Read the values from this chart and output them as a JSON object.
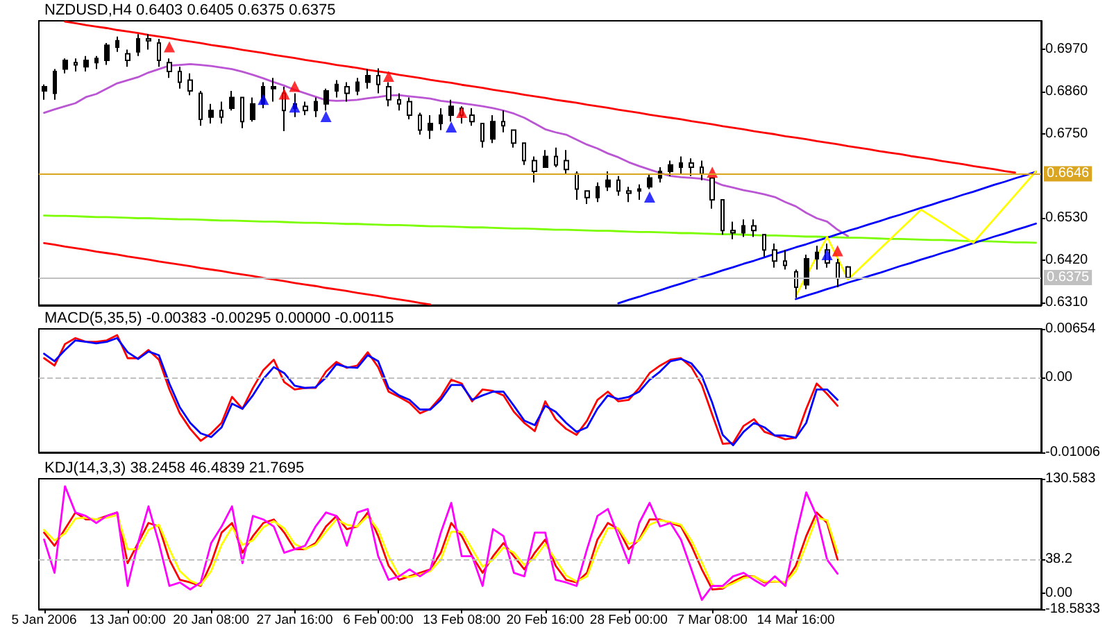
{
  "chart_data": [
    {
      "type": "candlestick",
      "title": "NZDUSD,H4 0.6403 0.6405 0.6375 0.6375",
      "color": "#000000",
      "categories": [
        null,
        null,
        null,
        null,
        null,
        null,
        null,
        null,
        null,
        null,
        null,
        null,
        null,
        null,
        null,
        null,
        null,
        null,
        null,
        null,
        null,
        null,
        null,
        null,
        null,
        null,
        null,
        null,
        null,
        null,
        null,
        null,
        null,
        null,
        null,
        null,
        null,
        null,
        null,
        null,
        null,
        null,
        null,
        null,
        null,
        null,
        null,
        null,
        null,
        null,
        null,
        null,
        null,
        null,
        null,
        null,
        null,
        null,
        null,
        null,
        null,
        null,
        null,
        null,
        null,
        null,
        null,
        null,
        null,
        null,
        null,
        null,
        null,
        null,
        null,
        null,
        null,
        null,
        null,
        null,
        null,
        null,
        null,
        null,
        null,
        null,
        null,
        null,
        null,
        null,
        null,
        null,
        null,
        null,
        null,
        null
      ],
      "ohlc": [
        [
          0.6862,
          0.6879,
          0.6839,
          0.6873
        ],
        [
          0.6856,
          0.6919,
          0.6839,
          0.6913
        ],
        [
          0.6919,
          0.6947,
          0.6908,
          0.6942
        ],
        [
          0.6936,
          0.6947,
          0.6913,
          0.693
        ],
        [
          0.6925,
          0.6953,
          0.6913,
          0.6942
        ],
        [
          0.6936,
          0.6953,
          0.6919,
          0.6947
        ],
        [
          0.6942,
          0.6987,
          0.693,
          0.6981
        ],
        [
          0.6976,
          0.7004,
          0.6964,
          0.6993
        ],
        [
          0.6959,
          0.697,
          0.6925,
          0.6942
        ],
        [
          0.6964,
          0.701,
          0.6953,
          0.6998
        ],
        [
          0.6998,
          0.701,
          0.697,
          0.6993
        ],
        [
          0.6987,
          0.6998,
          0.6925,
          0.6942
        ],
        [
          0.6936,
          0.6947,
          0.6896,
          0.6913
        ],
        [
          0.6913,
          0.6925,
          0.6868,
          0.6885
        ],
        [
          0.689,
          0.6908,
          0.6851,
          0.6862
        ],
        [
          0.6856,
          0.6862,
          0.6771,
          0.6788
        ],
        [
          0.6794,
          0.6828,
          0.6777,
          0.6811
        ],
        [
          0.6811,
          0.6834,
          0.6777,
          0.6794
        ],
        [
          0.6817,
          0.6862,
          0.6811,
          0.6845
        ],
        [
          0.6845,
          0.6845,
          0.6765,
          0.6782
        ],
        [
          0.6788,
          0.6845,
          0.6782,
          0.6828
        ],
        [
          0.6828,
          0.6885,
          0.6817,
          0.6873
        ],
        [
          0.6868,
          0.6896,
          0.6834,
          0.6873
        ],
        [
          0.6856,
          0.6873,
          0.6757,
          0.6811
        ],
        [
          0.6817,
          0.6856,
          0.6794,
          0.6828
        ],
        [
          0.6822,
          0.6834,
          0.6799,
          0.6811
        ],
        [
          0.6811,
          0.6845,
          0.6794,
          0.6834
        ],
        [
          0.6828,
          0.6868,
          0.6811,
          0.6862
        ],
        [
          0.6862,
          0.689,
          0.6845,
          0.6879
        ],
        [
          0.6873,
          0.6885,
          0.6834,
          0.6856
        ],
        [
          0.6862,
          0.6896,
          0.6851,
          0.6885
        ],
        [
          0.6885,
          0.6919,
          0.6868,
          0.6902
        ],
        [
          0.6902,
          0.6921,
          0.6856,
          0.6879
        ],
        [
          0.6873,
          0.6885,
          0.6822,
          0.6839
        ],
        [
          0.6839,
          0.6856,
          0.6811,
          0.6828
        ],
        [
          0.6834,
          0.6845,
          0.6788,
          0.6799
        ],
        [
          0.6799,
          0.6805,
          0.6748,
          0.676
        ],
        [
          0.676,
          0.6799,
          0.6737,
          0.6777
        ],
        [
          0.6777,
          0.6817,
          0.676,
          0.6799
        ],
        [
          0.6799,
          0.6839,
          0.6782,
          0.6822
        ],
        [
          0.6817,
          0.6822,
          0.6777,
          0.6799
        ],
        [
          0.6799,
          0.6817,
          0.6771,
          0.6782
        ],
        [
          0.6777,
          0.6777,
          0.6714,
          0.6731
        ],
        [
          0.6737,
          0.6799,
          0.6726,
          0.6782
        ],
        [
          0.6782,
          0.6811,
          0.6754,
          0.6771
        ],
        [
          0.676,
          0.676,
          0.6714,
          0.6726
        ],
        [
          0.6726,
          0.6726,
          0.6669,
          0.668
        ],
        [
          0.668,
          0.6691,
          0.6623,
          0.6652
        ],
        [
          0.6663,
          0.6708,
          0.6663,
          0.6691
        ],
        [
          0.6691,
          0.6714,
          0.6663,
          0.6669
        ],
        [
          0.668,
          0.6708,
          0.6646,
          0.6657
        ],
        [
          0.6646,
          0.6652,
          0.6578,
          0.6606
        ],
        [
          0.6601,
          0.6601,
          0.6567,
          0.6584
        ],
        [
          0.6584,
          0.6623,
          0.6572,
          0.6612
        ],
        [
          0.6612,
          0.6652,
          0.6601,
          0.6629
        ],
        [
          0.6629,
          0.664,
          0.6589,
          0.6601
        ],
        [
          0.6601,
          0.6612,
          0.6572,
          0.6595
        ],
        [
          0.6601,
          0.6618,
          0.6578,
          0.6606
        ],
        [
          0.6612,
          0.6646,
          0.6606,
          0.6635
        ],
        [
          0.6635,
          0.6663,
          0.6623,
          0.6652
        ],
        [
          0.6652,
          0.668,
          0.664,
          0.6669
        ],
        [
          0.6663,
          0.6691,
          0.6646,
          0.6674
        ],
        [
          0.6674,
          0.6686,
          0.664,
          0.6663
        ],
        [
          0.6663,
          0.668,
          0.6629,
          0.6646
        ],
        [
          0.6635,
          0.6635,
          0.6555,
          0.6578
        ],
        [
          0.6578,
          0.6578,
          0.6487,
          0.6498
        ],
        [
          0.6498,
          0.6521,
          0.6475,
          0.6492
        ],
        [
          0.6492,
          0.6527,
          0.6481,
          0.651
        ],
        [
          0.651,
          0.6527,
          0.6481,
          0.6498
        ],
        [
          0.6487,
          0.6487,
          0.643,
          0.6447
        ],
        [
          0.6447,
          0.6464,
          0.6401,
          0.6418
        ],
        [
          0.6418,
          0.6447,
          0.6396,
          0.6407
        ],
        [
          0.639,
          0.6396,
          0.6322,
          0.635
        ],
        [
          0.6356,
          0.6435,
          0.6345,
          0.6424
        ],
        [
          0.6424,
          0.6458,
          0.6396,
          0.6441
        ],
        [
          0.6447,
          0.6464,
          0.6401,
          0.6413
        ],
        [
          0.6413,
          0.6424,
          0.635,
          0.6373
        ],
        [
          0.6403,
          0.6405,
          0.6375,
          0.6375
        ],
        null,
        null,
        null,
        null,
        null,
        null,
        null,
        null,
        null,
        null,
        null,
        null,
        null,
        null,
        null,
        null,
        null,
        null
      ],
      "series": [
        {
          "type": "line",
          "color": "#ba55d3",
          "values": [
            0.6805,
            0.6814,
            0.6822,
            0.683,
            0.6846,
            0.6854,
            0.6868,
            0.6882,
            0.689,
            0.6898,
            0.691,
            0.6919,
            0.6928,
            0.693,
            0.6932,
            0.693,
            0.6927,
            0.6923,
            0.6919,
            0.6912,
            0.6904,
            0.6895,
            0.6885,
            0.6876,
            0.6865,
            0.6856,
            0.6847,
            0.6838,
            0.6836,
            0.6837,
            0.6839,
            0.6843,
            0.6846,
            0.685,
            0.6851,
            0.6848,
            0.6845,
            0.6842,
            0.6836,
            0.6833,
            0.683,
            0.6826,
            0.6822,
            0.6817,
            0.6811,
            0.6803,
            0.6792,
            0.6777,
            0.6762,
            0.6754,
            0.6748,
            0.6735,
            0.6722,
            0.6712,
            0.6699,
            0.6689,
            0.6676,
            0.6666,
            0.6657,
            0.6648,
            0.664,
            0.6637,
            0.6635,
            0.6633,
            0.6627,
            0.6616,
            0.661,
            0.6603,
            0.6598,
            0.6592,
            0.6585,
            0.6572,
            0.6561,
            0.6544,
            0.653,
            0.6521,
            0.65,
            0.6483,
            null,
            null,
            null,
            null,
            null,
            null,
            null,
            null,
            null,
            null,
            null,
            null,
            null,
            null,
            null,
            null,
            null,
            null
          ]
        },
        {
          "type": "line",
          "color": "#ff0000",
          "values": [
            null,
            null,
            0.7043,
            0.7039,
            0.7034,
            0.703,
            0.7026,
            0.7021,
            0.7017,
            0.7013,
            0.7008,
            0.7004,
            0.7,
            0.6995,
            0.6991,
            0.6987,
            0.6982,
            0.6978,
            0.6974,
            0.6969,
            0.6965,
            0.6961,
            0.6956,
            0.6952,
            0.6948,
            0.6943,
            0.6939,
            0.6935,
            0.693,
            0.6926,
            0.6922,
            0.6917,
            0.6913,
            0.6909,
            0.6904,
            0.69,
            0.6896,
            0.6891,
            0.6887,
            0.6883,
            0.6878,
            0.6874,
            0.687,
            0.6865,
            0.6861,
            0.6857,
            0.6852,
            0.6848,
            0.6844,
            0.6839,
            0.6835,
            0.6831,
            0.6826,
            0.6822,
            0.6818,
            0.6813,
            0.6809,
            0.6805,
            0.68,
            0.6796,
            0.6792,
            0.6788,
            0.6783,
            0.6779,
            0.6775,
            0.677,
            0.6766,
            0.6762,
            0.6757,
            0.6753,
            0.6749,
            0.6744,
            0.674,
            0.6736,
            0.6731,
            0.6727,
            0.6723,
            0.6718,
            0.6714,
            0.671,
            0.6705,
            0.6701,
            0.6697,
            0.6692,
            0.6688,
            0.6684,
            0.6679,
            0.6675,
            0.6671,
            0.6666,
            0.6662,
            0.6658,
            0.6653,
            0.6649,
            null,
            null
          ]
        },
        {
          "type": "line",
          "color": "#ff0000",
          "values": [
            0.6465,
            0.6461,
            0.6456,
            0.6452,
            0.6448,
            0.6443,
            0.6439,
            0.6435,
            0.643,
            0.6426,
            0.6422,
            0.6417,
            0.6413,
            0.6409,
            0.6405,
            0.64,
            0.6396,
            0.6392,
            0.6387,
            0.6383,
            0.6379,
            0.6374,
            0.637,
            0.6366,
            0.6361,
            0.6357,
            0.6353,
            0.6348,
            0.6344,
            0.634,
            0.6335,
            0.6331,
            0.6327,
            0.6322,
            0.6318,
            0.6314,
            0.6309,
            0.6305,
            null,
            null,
            null,
            null,
            null,
            null,
            null,
            null,
            null,
            null,
            null,
            null,
            null,
            null,
            null,
            null,
            null,
            null,
            null,
            null,
            null,
            null,
            null,
            null,
            null,
            null,
            null,
            null,
            null,
            null,
            null,
            null,
            null,
            null,
            null,
            null,
            null,
            null,
            null,
            null,
            null,
            null,
            null,
            null,
            null,
            null,
            null,
            null,
            null,
            null,
            null,
            null,
            null,
            null,
            null,
            null,
            null,
            null
          ]
        },
        {
          "type": "line",
          "color": "#7cfc00",
          "values": [
            0.6537,
            0.6536,
            0.6536,
            0.6535,
            0.6534,
            0.6533,
            0.6533,
            0.6532,
            0.6531,
            0.653,
            0.653,
            0.6529,
            0.6528,
            0.6527,
            0.6527,
            0.6526,
            0.6525,
            0.6524,
            0.6524,
            0.6523,
            0.6522,
            0.6521,
            0.6521,
            0.652,
            0.6519,
            0.6518,
            0.6518,
            0.6517,
            0.6516,
            0.6515,
            0.6515,
            0.6514,
            0.6513,
            0.6512,
            0.6512,
            0.6511,
            0.651,
            0.6509,
            0.6509,
            0.6508,
            0.6507,
            0.6506,
            0.6506,
            0.6505,
            0.6504,
            0.6503,
            0.6503,
            0.6502,
            0.6501,
            0.65,
            0.65,
            0.6499,
            0.6498,
            0.6497,
            0.6497,
            0.6496,
            0.6495,
            0.6494,
            0.6494,
            0.6493,
            0.6492,
            0.6491,
            0.6491,
            0.649,
            0.6489,
            0.6488,
            0.6488,
            0.6487,
            0.6486,
            0.6485,
            0.6485,
            0.6484,
            0.6483,
            0.6482,
            0.6482,
            0.6481,
            0.648,
            0.6479,
            0.6479,
            0.6478,
            0.6477,
            0.6476,
            0.6476,
            0.6475,
            0.6474,
            0.6473,
            0.6473,
            0.6472,
            0.6471,
            0.647,
            0.647,
            0.6469,
            0.6468,
            0.6467,
            0.6467,
            0.6466
          ]
        },
        {
          "type": "line",
          "color": "#0000ff",
          "values": [
            null,
            null,
            null,
            null,
            null,
            null,
            null,
            null,
            null,
            null,
            null,
            null,
            null,
            null,
            null,
            null,
            null,
            null,
            null,
            null,
            null,
            null,
            null,
            null,
            null,
            null,
            null,
            null,
            null,
            null,
            null,
            null,
            null,
            null,
            null,
            null,
            null,
            null,
            null,
            null,
            null,
            null,
            null,
            null,
            null,
            null,
            null,
            null,
            null,
            null,
            null,
            null,
            null,
            null,
            null,
            0.6308,
            0.6317,
            0.6325,
            0.6334,
            0.6342,
            0.6351,
            0.6359,
            0.6368,
            0.6377,
            0.6385,
            0.6394,
            0.6402,
            0.6411,
            0.6419,
            0.6428,
            0.6437,
            0.6445,
            0.6454,
            0.6462,
            0.6471,
            0.6479,
            0.6488,
            0.6497,
            0.6505,
            0.6514,
            0.6522,
            0.6531,
            0.6539,
            0.6548,
            0.6557,
            0.6565,
            0.6574,
            0.6582,
            0.6591,
            0.6599,
            0.6608,
            0.6617,
            0.6625,
            0.6634,
            0.6642,
            0.6651
          ]
        },
        {
          "type": "line",
          "color": "#0000ff",
          "values": [
            null,
            null,
            null,
            null,
            null,
            null,
            null,
            null,
            null,
            null,
            null,
            null,
            null,
            null,
            null,
            null,
            null,
            null,
            null,
            null,
            null,
            null,
            null,
            null,
            null,
            null,
            null,
            null,
            null,
            null,
            null,
            null,
            null,
            null,
            null,
            null,
            null,
            null,
            null,
            null,
            null,
            null,
            null,
            null,
            null,
            null,
            null,
            null,
            null,
            null,
            null,
            null,
            null,
            null,
            null,
            null,
            null,
            null,
            null,
            null,
            null,
            null,
            null,
            null,
            null,
            null,
            null,
            null,
            null,
            null,
            null,
            null,
            0.6319,
            0.6328,
            0.6336,
            0.6345,
            0.6353,
            0.6362,
            0.637,
            0.6379,
            0.6387,
            0.6396,
            0.6405,
            0.6413,
            0.6422,
            0.643,
            0.6439,
            0.6447,
            0.6456,
            0.6465,
            0.6473,
            0.6482,
            0.649,
            0.6499,
            0.6507,
            0.6516
          ]
        },
        {
          "type": "line",
          "color": "#ffff00",
          "values": [
            null,
            null,
            null,
            null,
            null,
            null,
            null,
            null,
            null,
            null,
            null,
            null,
            null,
            null,
            null,
            null,
            null,
            null,
            null,
            null,
            null,
            null,
            null,
            null,
            null,
            null,
            null,
            null,
            null,
            null,
            null,
            null,
            null,
            null,
            null,
            null,
            null,
            null,
            null,
            null,
            null,
            null,
            null,
            null,
            null,
            null,
            null,
            null,
            null,
            null,
            null,
            null,
            null,
            null,
            null,
            null,
            null,
            null,
            null,
            null,
            null,
            null,
            null,
            null,
            null,
            null,
            null,
            null,
            null,
            null,
            null,
            null,
            0.6328,
            0.6379,
            0.643,
            0.6481,
            0.6426,
            0.637,
            0.6396,
            0.6422,
            0.6448,
            0.6474,
            0.65,
            0.6526,
            0.6552,
            0.6535,
            0.6518,
            0.65,
            0.6483,
            0.6466,
            0.6497,
            0.6528,
            0.6559,
            0.659,
            0.6621,
            0.6652
          ]
        },
        {
          "type": "scatter",
          "color": "#ff0000",
          "marker": "triangle",
          "values": [
            null,
            null,
            null,
            null,
            null,
            null,
            null,
            null,
            null,
            null,
            null,
            null,
            0.6977,
            null,
            null,
            null,
            null,
            null,
            null,
            null,
            null,
            null,
            null,
            0.6854,
            0.6874,
            null,
            null,
            null,
            null,
            null,
            null,
            null,
            null,
            0.69,
            null,
            null,
            null,
            null,
            null,
            null,
            0.6806,
            null,
            null,
            null,
            null,
            null,
            null,
            null,
            null,
            null,
            null,
            null,
            null,
            null,
            null,
            null,
            null,
            null,
            null,
            null,
            null,
            null,
            null,
            null,
            0.665,
            null,
            null,
            null,
            null,
            null,
            null,
            null,
            null,
            null,
            null,
            null,
            0.6445,
            null,
            null,
            null,
            null,
            null,
            null,
            null,
            null,
            null,
            null,
            null,
            null,
            null,
            null,
            null,
            null,
            null,
            null,
            null
          ]
        },
        {
          "type": "scatter",
          "color": "#0000ff",
          "marker": "triangle",
          "values": [
            null,
            null,
            null,
            null,
            null,
            null,
            null,
            null,
            null,
            null,
            null,
            null,
            null,
            null,
            null,
            null,
            null,
            null,
            null,
            null,
            null,
            0.684,
            null,
            null,
            0.682,
            null,
            null,
            0.6795,
            null,
            null,
            null,
            null,
            null,
            null,
            null,
            null,
            null,
            null,
            null,
            0.6768,
            null,
            null,
            null,
            null,
            null,
            null,
            null,
            null,
            null,
            null,
            null,
            null,
            null,
            null,
            null,
            null,
            null,
            null,
            0.6585,
            null,
            null,
            null,
            null,
            null,
            null,
            null,
            null,
            null,
            null,
            null,
            null,
            null,
            null,
            null,
            null,
            0.6435,
            null,
            null,
            null,
            null,
            null,
            null,
            null,
            null,
            null,
            null,
            null,
            null,
            null,
            null,
            null,
            null,
            null,
            null,
            null,
            null
          ]
        }
      ],
      "ref_lines": [
        {
          "axis": "y",
          "value": 0.6646,
          "label": "0.6646",
          "color": "#daa520"
        },
        {
          "axis": "y",
          "value": 0.6375,
          "label": "0.6375",
          "color": "#c0c0c0"
        }
      ],
      "ylim": [
        0.6303,
        0.7045
      ],
      "yticks": [
        {
          "value": 0.631,
          "label": "0.6310"
        },
        {
          "value": 0.642,
          "label": "0.6420"
        },
        {
          "value": 0.653,
          "label": "0.6530"
        },
        {
          "value": 0.675,
          "label": "0.6750"
        },
        {
          "value": 0.686,
          "label": "0.6860"
        },
        {
          "value": 0.697,
          "label": "0.6970"
        }
      ],
      "tick_labels": "y"
    },
    {
      "type": "line",
      "title": "MACD(5,35,5) -0.00383 -0.00295 0.00000 -0.00115",
      "categories": [
        null,
        null,
        null,
        null,
        null,
        null,
        null,
        null,
        null,
        null,
        null,
        null,
        null,
        null,
        null,
        null,
        null,
        null,
        null,
        null,
        null,
        null,
        null,
        null,
        null,
        null,
        null,
        null,
        null,
        null,
        null,
        null,
        null,
        null,
        null,
        null,
        null,
        null,
        null,
        null,
        null,
        null,
        null,
        null,
        null,
        null,
        null,
        null,
        null,
        null,
        null,
        null,
        null,
        null,
        null,
        null,
        null,
        null,
        null,
        null,
        null,
        null,
        null,
        null,
        null,
        null,
        null,
        null,
        null,
        null,
        null,
        null,
        null,
        null,
        null,
        null,
        null,
        null,
        null,
        null,
        null,
        null,
        null,
        null,
        null,
        null,
        null,
        null,
        null,
        null,
        null,
        null,
        null,
        null,
        null,
        null
      ],
      "series": [
        {
          "color": "#ff0000",
          "values": [
            0.0026,
            0.0016,
            0.0045,
            0.0053,
            0.0048,
            0.0048,
            0.005,
            0.0057,
            0.0026,
            0.0026,
            0.0037,
            0.0024,
            -0.0016,
            -0.0048,
            -0.0069,
            -0.0085,
            -0.0075,
            -0.0061,
            -0.0026,
            -0.0042,
            -0.0014,
            0.001,
            0.0024,
            -0.0006,
            -0.0016,
            -0.0014,
            -0.0014,
            0.0008,
            0.0021,
            0.0013,
            0.0016,
            0.0034,
            0.0014,
            -0.0019,
            -0.0026,
            -0.0034,
            -0.0048,
            -0.0042,
            -0.0026,
            -0.0003,
            -0.0008,
            -0.0032,
            -0.0016,
            -0.0018,
            -0.0024,
            -0.0046,
            -0.0061,
            -0.0072,
            -0.0032,
            -0.0056,
            -0.0069,
            -0.0077,
            -0.0058,
            -0.003,
            -0.0019,
            -0.0032,
            -0.003,
            -0.0014,
            0.0006,
            0.0016,
            0.0024,
            0.0026,
            0.0014,
            -0.001,
            -0.005,
            -0.0089,
            -0.0088,
            -0.0065,
            -0.0056,
            -0.0073,
            -0.0078,
            -0.0083,
            -0.0081,
            -0.0042,
            -0.0008,
            -0.0022,
            -0.0038,
            null,
            null,
            null,
            null,
            null,
            null,
            null,
            null,
            null,
            null,
            null,
            null,
            null,
            null,
            null,
            null,
            null,
            null,
            null
          ]
        },
        {
          "color": "#0000ff",
          "values": [
            0.0032,
            0.0022,
            0.0037,
            0.005,
            0.0048,
            0.0046,
            0.0048,
            0.0053,
            0.0034,
            0.0025,
            0.0035,
            0.003,
            -0.0008,
            -0.004,
            -0.0061,
            -0.0075,
            -0.008,
            -0.0067,
            -0.0035,
            -0.0042,
            -0.0024,
            -0.0002,
            0.0014,
            0.0006,
            -0.0011,
            -0.0014,
            -0.0013,
            0,
            0.0018,
            0.0014,
            0.0013,
            0.003,
            0.0022,
            -0.0014,
            -0.0024,
            -0.003,
            -0.0043,
            -0.0043,
            -0.003,
            -0.001,
            -0.001,
            -0.003,
            -0.0024,
            -0.0019,
            -0.0019,
            -0.0038,
            -0.0058,
            -0.0064,
            -0.0038,
            -0.0046,
            -0.0061,
            -0.0073,
            -0.0067,
            -0.0042,
            -0.0024,
            -0.0029,
            -0.0026,
            -0.0019,
            -0.0003,
            0.0008,
            0.0022,
            0.0025,
            0.0019,
            0.0002,
            -0.0034,
            -0.0077,
            -0.0091,
            -0.0073,
            -0.0061,
            -0.0067,
            -0.0078,
            -0.0078,
            -0.0081,
            -0.0061,
            -0.0016,
            -0.0016,
            -0.003,
            null,
            null,
            null,
            null,
            null,
            null,
            null,
            null,
            null,
            null,
            null,
            null,
            null,
            null,
            null,
            null,
            null,
            null,
            null
          ]
        }
      ],
      "ref_lines": [
        {
          "axis": "y",
          "value": 0,
          "color": "#c0c0c0",
          "line_style": "dashed"
        }
      ],
      "ylim": [
        -0.01006,
        0.00654
      ],
      "yticks": [
        -0.01006,
        {
          "value": 0,
          "label": "0.00"
        },
        0.00654
      ],
      "tick_labels": "y"
    },
    {
      "type": "line",
      "title": "KDJ(14,3,3) 38.2458 46.4839 21.7695",
      "categories": [
        "5 Jan 2006",
        null,
        null,
        null,
        null,
        null,
        null,
        null,
        "13 Jan 00:00",
        null,
        null,
        null,
        null,
        null,
        null,
        null,
        "20 Jan 08:00",
        null,
        null,
        null,
        null,
        null,
        null,
        null,
        "27 Jan 16:00",
        null,
        null,
        null,
        null,
        null,
        null,
        null,
        "6 Feb 00:00",
        null,
        null,
        null,
        null,
        null,
        null,
        null,
        "13 Feb 08:00",
        null,
        null,
        null,
        null,
        null,
        null,
        null,
        "20 Feb 16:00",
        null,
        null,
        null,
        null,
        null,
        null,
        null,
        "28 Feb 00:00",
        null,
        null,
        null,
        null,
        null,
        null,
        null,
        "7 Mar 08:00",
        null,
        null,
        null,
        null,
        null,
        null,
        null,
        "14 Mar 16:00",
        null,
        null,
        null,
        null,
        null,
        null,
        null,
        null,
        null,
        null,
        null,
        null,
        null,
        null,
        null,
        null,
        null,
        null,
        null,
        null,
        null,
        null,
        null
      ],
      "series": [
        {
          "color": "#ff0000",
          "values": [
            69,
            54,
            73,
            92,
            84,
            84,
            88,
            92,
            34,
            57,
            80,
            76,
            38,
            15,
            12,
            8,
            34,
            69,
            80,
            46,
            65,
            80,
            84,
            69,
            50,
            50,
            57,
            76,
            88,
            73,
            76,
            92,
            65,
            31,
            15,
            19,
            23,
            27,
            46,
            80,
            65,
            42,
            23,
            42,
            57,
            42,
            27,
            46,
            61,
            31,
            15,
            12,
            23,
            61,
            80,
            73,
            50,
            61,
            84,
            84,
            80,
            76,
            54,
            27,
            4,
            5,
            13,
            19,
            19,
            12,
            13,
            12,
            31,
            65,
            92,
            80,
            38,
            null,
            null,
            null,
            null,
            null,
            null,
            null,
            null,
            null,
            null,
            null,
            null,
            null,
            null,
            null,
            null,
            null,
            null,
            null
          ]
        },
        {
          "color": "#ffff00",
          "values": [
            72,
            60,
            68,
            85,
            86,
            84,
            86,
            89,
            50,
            50,
            72,
            78,
            50,
            25,
            14,
            9,
            25,
            55,
            75,
            55,
            60,
            75,
            82,
            74,
            56,
            50,
            55,
            70,
            84,
            78,
            76,
            88,
            72,
            42,
            20,
            18,
            21,
            25,
            38,
            70,
            70,
            50,
            30,
            38,
            52,
            46,
            32,
            40,
            56,
            38,
            20,
            13,
            19,
            50,
            74,
            74,
            56,
            60,
            78,
            83,
            81,
            78,
            60,
            35,
            9,
            6,
            11,
            17,
            19,
            13,
            13,
            12,
            25,
            55,
            86,
            83,
            46,
            null,
            null,
            null,
            null,
            null,
            null,
            null,
            null,
            null,
            null,
            null,
            null,
            null,
            null,
            null,
            null,
            null,
            null,
            null
          ]
        },
        {
          "color": "#ff00ff",
          "values": [
            61,
            23,
            122,
            92,
            88,
            80,
            88,
            92,
            8,
            57,
            99,
            57,
            8,
            12,
            4,
            12,
            57,
            76,
            99,
            34,
            88,
            84,
            76,
            46,
            50,
            54,
            76,
            92,
            88,
            54,
            92,
            96,
            42,
            15,
            19,
            27,
            19,
            27,
            69,
            103,
            42,
            42,
            8,
            73,
            65,
            23,
            19,
            69,
            69,
            15,
            12,
            8,
            50,
            88,
            96,
            65,
            34,
            80,
            103,
            76,
            80,
            61,
            27,
            -8,
            8,
            8,
            19,
            23,
            15,
            8,
            19,
            8,
            65,
            115,
            88,
            38,
            22,
            null,
            null,
            null,
            null,
            null,
            null,
            null,
            null,
            null,
            null,
            null,
            null,
            null,
            null,
            null,
            null,
            null,
            null,
            null
          ]
        }
      ],
      "ref_lines": [
        {
          "axis": "y",
          "value": 38.2,
          "color": "#c0c0c0",
          "line_style": "dashed"
        }
      ],
      "ylim": [
        -18.5833,
        130.583
      ],
      "yticks": [
        -18.5833,
        {
          "value": 0,
          "label": "0.00"
        },
        38.2,
        130.583
      ]
    }
  ]
}
